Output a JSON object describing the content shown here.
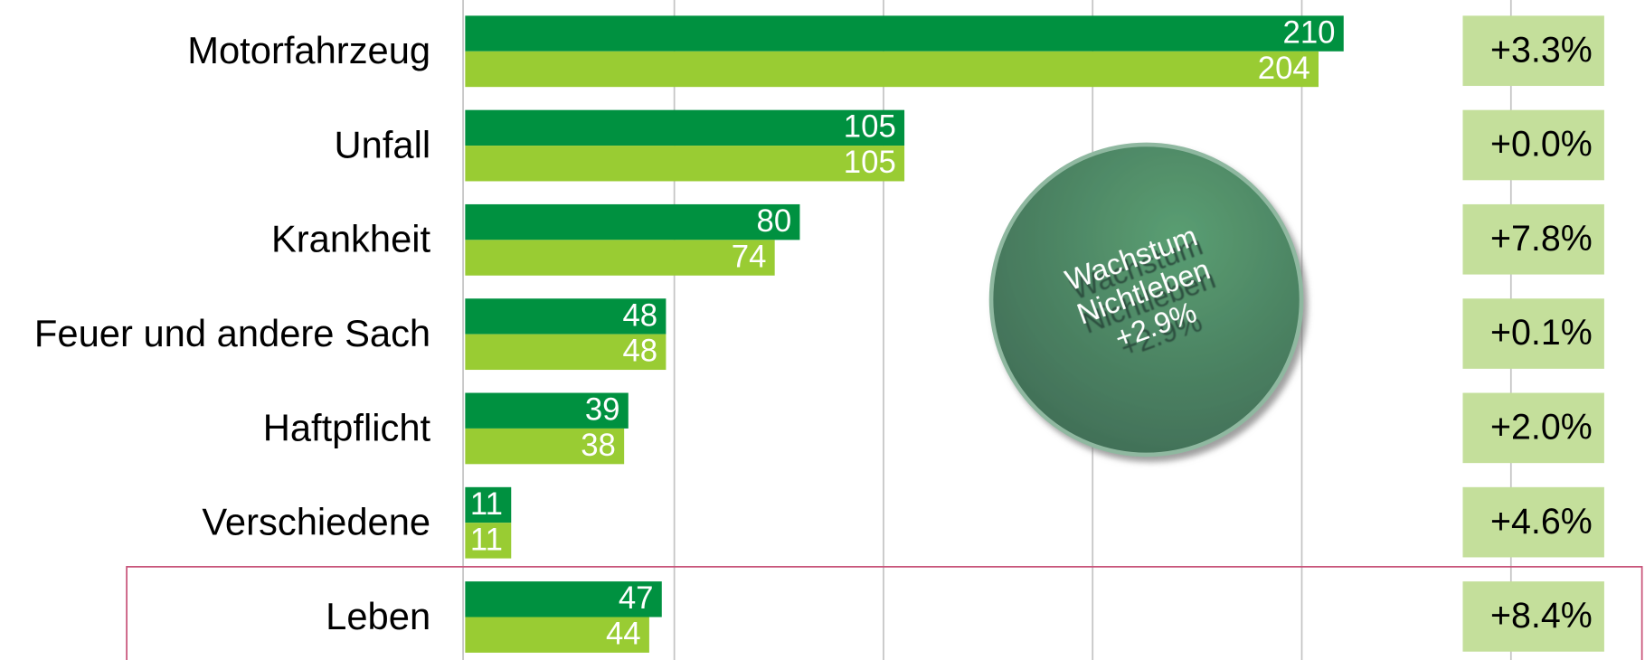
{
  "chart_data": {
    "type": "bar",
    "orientation": "horizontal",
    "categories": [
      "Motorfahrzeug",
      "Unfall",
      "Krankheit",
      "Feuer und andere Sach",
      "Haftpflicht",
      "Verschiedene",
      "Leben"
    ],
    "series": [
      {
        "color": "#009140",
        "values": [
          210,
          105,
          80,
          48,
          39,
          11,
          47
        ]
      },
      {
        "color": "#99cc33",
        "values": [
          204,
          105,
          74,
          48,
          38,
          11,
          44
        ]
      }
    ],
    "growth_labels": [
      "+3.3%",
      "+0.0%",
      "+7.8%",
      "+0.1%",
      "+2.0%",
      "+4.6%",
      "+8.4%"
    ],
    "annotation": [
      "Wachstum",
      "Nichtleben",
      "+2.9%"
    ],
    "xlim": [
      0,
      250
    ],
    "xticks": [
      0,
      50,
      100,
      150,
      200,
      250
    ],
    "grid": true
  }
}
